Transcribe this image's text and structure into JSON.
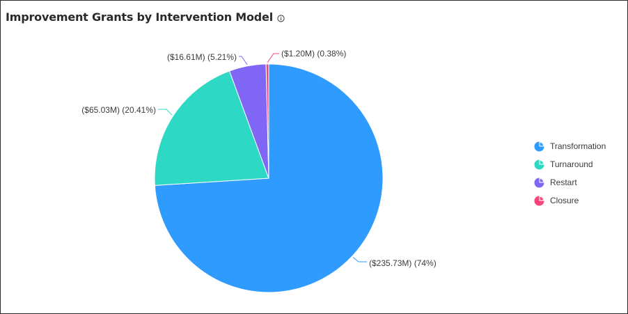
{
  "header": {
    "title": "Improvement Grants by Intervention Model",
    "info_icon": "info-circle-icon"
  },
  "chart_data": {
    "type": "pie",
    "title": "Improvement Grants by Intervention Model",
    "legend_position": "right",
    "slices": [
      {
        "name": "Transformation",
        "value": 235.73,
        "percent": 74,
        "label": "($235.73M) (74%)",
        "color": "#2f9bff"
      },
      {
        "name": "Turnaround",
        "value": 65.03,
        "percent": 20.41,
        "label": "($65.03M) (20.41%)",
        "color": "#2dd9c5"
      },
      {
        "name": "Restart",
        "value": 16.61,
        "percent": 5.21,
        "label": "($16.61M) (5.21%)",
        "color": "#8066f5"
      },
      {
        "name": "Closure",
        "value": 1.2,
        "percent": 0.38,
        "label": "($1.20M) (0.38%)",
        "color": "#f5457a"
      }
    ]
  }
}
